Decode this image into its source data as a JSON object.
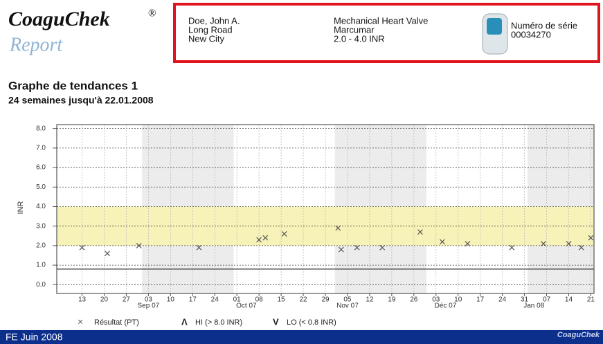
{
  "header": {
    "brand": "CoaguChek",
    "brand_mark": "®",
    "report": "Report",
    "patient": [
      "Doe, John A.",
      "Long Road",
      "New City"
    ],
    "therapy": [
      "Mechanical Heart Valve",
      "Marcumar",
      "2.0 - 4.0 INR"
    ],
    "serial_label": "Numéro de série",
    "serial": "00034270"
  },
  "chart_data": {
    "type": "scatter",
    "title": "Graphe de tendances 1",
    "subtitle": "24 semaines jusqu'à 22.01.2008",
    "y_label": "INR",
    "xlim": [
      "2007-08-05",
      "2008-01-22"
    ],
    "xticks": [
      {
        "value": "2007-08-13",
        "label": "13"
      },
      {
        "value": "2007-08-20",
        "label": "20"
      },
      {
        "value": "2007-08-27",
        "label": "27"
      },
      {
        "value": "2007-09-03",
        "label": "03"
      },
      {
        "value": "2007-09-10",
        "label": "10"
      },
      {
        "value": "2007-09-17",
        "label": "17"
      },
      {
        "value": "2007-09-24",
        "label": "24"
      },
      {
        "value": "2007-10-01",
        "label": "01"
      },
      {
        "value": "2007-10-08",
        "label": "08"
      },
      {
        "value": "2007-10-15",
        "label": "15"
      },
      {
        "value": "2007-10-22",
        "label": "22"
      },
      {
        "value": "2007-10-29",
        "label": "29"
      },
      {
        "value": "2007-11-05",
        "label": "05"
      },
      {
        "value": "2007-11-12",
        "label": "12"
      },
      {
        "value": "2007-11-19",
        "label": "19"
      },
      {
        "value": "2007-11-26",
        "label": "26"
      },
      {
        "value": "2007-12-03",
        "label": "03"
      },
      {
        "value": "2007-12-10",
        "label": "10"
      },
      {
        "value": "2007-12-17",
        "label": "17"
      },
      {
        "value": "2007-12-24",
        "label": "24"
      },
      {
        "value": "2007-12-31",
        "label": "31"
      },
      {
        "value": "2008-01-07",
        "label": "07"
      },
      {
        "value": "2008-01-14",
        "label": "14"
      },
      {
        "value": "2008-01-21",
        "label": "21"
      }
    ],
    "month_labels": [
      {
        "value": "2007-09-03",
        "label": "Sep 07"
      },
      {
        "value": "2007-10-04",
        "label": "Oct 07"
      },
      {
        "value": "2007-11-05",
        "label": "Nov 07"
      },
      {
        "value": "2007-12-06",
        "label": "Déc 07"
      },
      {
        "value": "2008-01-03",
        "label": "Jan 08"
      }
    ],
    "shaded_periods": [
      [
        "2007-09-01",
        "2007-09-30"
      ],
      [
        "2007-11-01",
        "2007-11-30"
      ],
      [
        "2008-01-01",
        "2008-01-22"
      ]
    ],
    "ylim": [
      -0.45,
      8.2
    ],
    "yticks": [
      {
        "value": 0,
        "label": "0.0"
      },
      {
        "value": 1,
        "label": "1.0"
      },
      {
        "value": 2,
        "label": "2.0"
      },
      {
        "value": 3,
        "label": "3.0"
      },
      {
        "value": 4,
        "label": "4.0"
      },
      {
        "value": 5,
        "label": "5.0"
      },
      {
        "value": 6,
        "label": "6.0"
      },
      {
        "value": 7,
        "label": "7.0"
      },
      {
        "value": 8,
        "label": "8.0"
      }
    ],
    "grid": true,
    "target_range": [
      2,
      4
    ],
    "target_color": "#f7f3b8",
    "lo_limit": 0.8,
    "series": [
      {
        "name": "Résultat (PT)",
        "marker": "×",
        "color": "#555555",
        "x": [
          "2007-08-13",
          "2007-08-21",
          "2007-08-31",
          "2007-09-19",
          "2007-10-08",
          "2007-10-10",
          "2007-10-16",
          "2007-11-02",
          "2007-11-03",
          "2007-11-08",
          "2007-11-16",
          "2007-11-28",
          "2007-12-05",
          "2007-12-13",
          "2007-12-27",
          "2008-01-06",
          "2008-01-14",
          "2008-01-18",
          "2008-01-21"
        ],
        "values": [
          1.9,
          1.6,
          2.0,
          1.9,
          2.3,
          2.4,
          2.6,
          2.9,
          1.8,
          1.9,
          1.9,
          2.7,
          2.2,
          2.1,
          1.9,
          2.1,
          2.1,
          1.9,
          2.4
        ]
      }
    ],
    "legend_extra": [
      {
        "symbol": "Λ",
        "label": "HI (> 8.0 INR)"
      },
      {
        "symbol": "V",
        "label": "LO (< 0.8 INR)"
      }
    ]
  },
  "footer": {
    "text": "FE Juin 2008",
    "brand": "CoaguChek"
  }
}
